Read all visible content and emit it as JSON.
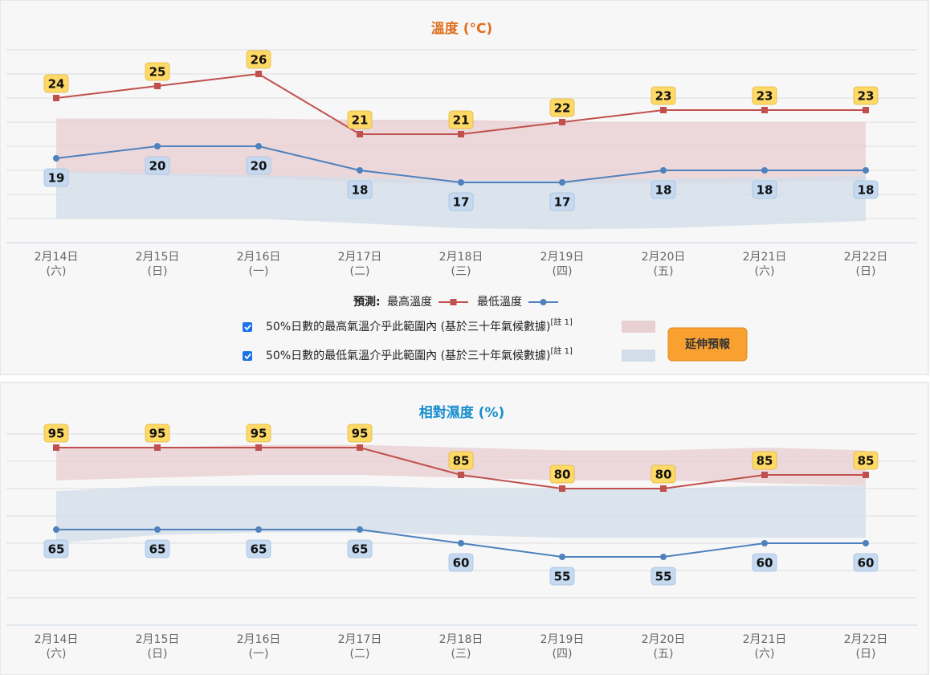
{
  "chart_data": [
    {
      "type": "line",
      "title": "溫度 (°C)",
      "title_color": "#e07020",
      "categories": [
        "2月14日",
        "2月15日",
        "2月16日",
        "2月17日",
        "2月18日",
        "2月19日",
        "2月20日",
        "2月21日",
        "2月22日"
      ],
      "subcategories": [
        "(六)",
        "(日)",
        "(一)",
        "(二)",
        "(三)",
        "(四)",
        "(五)",
        "(六)",
        "(日)"
      ],
      "ylim": [
        12,
        28
      ],
      "yticks": [
        12,
        14,
        16,
        18,
        20,
        22,
        24,
        26,
        28
      ],
      "ytick_labels": false,
      "grid": true,
      "series": [
        {
          "name": "最高溫度",
          "color": "#c0504d",
          "marker": "square",
          "labels": "above",
          "label_fill": "#ffd966",
          "values": [
            24,
            25,
            26,
            21,
            21,
            22,
            23,
            23,
            23
          ]
        },
        {
          "name": "最低溫度",
          "color": "#4f81bd",
          "marker": "circle",
          "labels": "below",
          "label_fill": "#c5d9f1",
          "values": [
            19,
            20,
            20,
            18,
            17,
            17,
            18,
            18,
            18
          ]
        }
      ],
      "bands": [
        {
          "name": "50%日數的最高氣溫介乎此範圍內 (基於三十年氣候數據)",
          "note": "[註 1]",
          "color": "#e8cfd2",
          "high": [
            22.3,
            22.3,
            22.3,
            22.2,
            22.2,
            22.0,
            22.0,
            22.0,
            22.0
          ],
          "low": [
            17.8,
            17.6,
            17.4,
            17.0,
            16.9,
            16.9,
            16.9,
            17.0,
            17.2
          ]
        },
        {
          "name": "50%日數的最低氣溫介乎此範圍內 (基於三十年氣候數據)",
          "note": "[註 1]",
          "color": "#d3dde9",
          "high": [
            17.9,
            17.8,
            17.6,
            17.4,
            17.2,
            17.2,
            17.3,
            17.4,
            17.6
          ],
          "low": [
            14.0,
            14.0,
            14.0,
            13.6,
            13.2,
            13.1,
            13.2,
            13.5,
            13.8
          ]
        }
      ],
      "legend_title": "預測:"
    },
    {
      "type": "line",
      "title": "相對濕度 (%)",
      "title_color": "#1a8fd0",
      "categories": [
        "2月14日",
        "2月15日",
        "2月16日",
        "2月17日",
        "2月18日",
        "2月19日",
        "2月20日",
        "2月21日",
        "2月22日"
      ],
      "subcategories": [
        "(六)",
        "(日)",
        "(一)",
        "(二)",
        "(三)",
        "(四)",
        "(五)",
        "(六)",
        "(日)"
      ],
      "ylim": [
        30,
        100
      ],
      "yticks": [
        30,
        40,
        50,
        60,
        70,
        80,
        90,
        100
      ],
      "ytick_labels": false,
      "grid": true,
      "series": [
        {
          "color": "#c0504d",
          "marker": "square",
          "labels": "above",
          "label_fill": "#ffd966",
          "values": [
            95,
            95,
            95,
            95,
            85,
            80,
            80,
            85,
            85
          ]
        },
        {
          "color": "#4f81bd",
          "marker": "circle",
          "labels": "below",
          "label_fill": "#c5d9f1",
          "values": [
            65,
            65,
            65,
            65,
            60,
            55,
            55,
            60,
            60
          ]
        }
      ],
      "bands": [
        {
          "color": "#e8cfd2",
          "high": [
            95,
            95,
            96,
            96,
            95,
            94,
            94,
            95,
            94
          ],
          "low": [
            83,
            84,
            85,
            85,
            84,
            83,
            83,
            82,
            81
          ]
        },
        {
          "color": "#d3dde9",
          "high": [
            79,
            81,
            81,
            81,
            80,
            80,
            80,
            81,
            81
          ],
          "low": [
            60,
            63,
            64,
            64,
            63,
            62,
            62,
            62,
            62
          ]
        }
      ]
    }
  ],
  "button": "延伸預報"
}
